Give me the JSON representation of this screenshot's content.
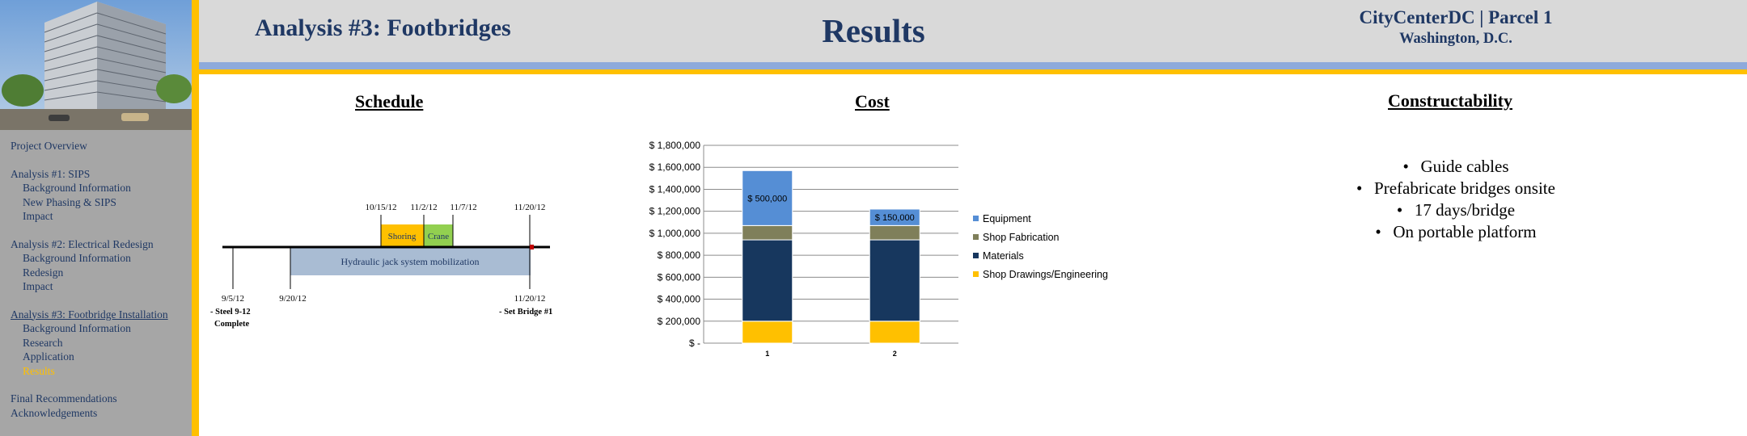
{
  "header": {
    "analysis_title": "Analysis #3: Footbridges",
    "page_title": "Results",
    "project_name": "CityCenterDC | Parcel 1",
    "location": "Washington, D.C."
  },
  "sidebar": {
    "nav": [
      {
        "label": "Project Overview",
        "level": 0
      },
      {
        "label": "Analysis #1: SIPS",
        "level": 0,
        "gap": true
      },
      {
        "label": "Background Information",
        "level": 1
      },
      {
        "label": "New Phasing & SIPS",
        "level": 1
      },
      {
        "label": "Impact",
        "level": 1
      },
      {
        "label": "Analysis #2: Electrical  Redesign",
        "level": 0,
        "gap": true
      },
      {
        "label": "Background Information",
        "level": 1
      },
      {
        "label": "Redesign",
        "level": 1
      },
      {
        "label": "Impact",
        "level": 1
      },
      {
        "label": "Analysis #3: Footbridge Installation",
        "level": 0,
        "gap": true,
        "underline": true
      },
      {
        "label": "Background Information",
        "level": 1
      },
      {
        "label": "Research",
        "level": 1
      },
      {
        "label": "Application",
        "level": 1
      },
      {
        "label": "Results",
        "level": 1,
        "active": true
      },
      {
        "label": "Final Recommendations",
        "level": 0,
        "gap": true
      },
      {
        "label": "Acknowledgements",
        "level": 0
      }
    ]
  },
  "schedule": {
    "title": "Schedule",
    "timeline": {
      "start_labels": [
        "9/5/12",
        "9/20/12"
      ],
      "end_label": "11/20/12",
      "top_dates": [
        "10/15/12",
        "11/2/12",
        "11/7/12",
        "11/20/12"
      ],
      "bars": {
        "hydraulic": "Hydraulic jack system mobilization",
        "shoring": "Shoring",
        "crane": "Crane"
      },
      "milestones": {
        "steel_line1": "- Steel 9-12",
        "steel_line2": "Complete",
        "bridge": "- Set Bridge #1"
      }
    }
  },
  "cost": {
    "title": "Cost"
  },
  "constructability": {
    "title": "Constructability",
    "bullets": [
      "Guide cables",
      "Prefabricate bridges onsite",
      "17 days/bridge",
      "On portable platform"
    ]
  },
  "colors": {
    "navy": "#1f3864",
    "gold": "#ffc000",
    "equipment": "#558ed5",
    "shop_fabrication": "#7f7f5a",
    "materials": "#17375e",
    "shop_drawings": "#ffc000",
    "hydraulic_bar": "#a9bcd3",
    "crane_bar": "#92d050"
  },
  "chart_data": {
    "type": "bar",
    "stacked": true,
    "categories": [
      "1",
      "2"
    ],
    "series": [
      {
        "name": "Shop Drawings/Engineering",
        "values": [
          200000,
          200000
        ],
        "color": "#ffc000"
      },
      {
        "name": "Materials",
        "values": [
          740000,
          740000
        ],
        "color": "#17375e"
      },
      {
        "name": "Shop Fabrication",
        "values": [
          130000,
          130000
        ],
        "color": "#7f7f5a"
      },
      {
        "name": "Equipment",
        "values": [
          500000,
          150000
        ],
        "color": "#558ed5"
      }
    ],
    "data_labels": [
      "$ 500,000",
      "$ 150,000"
    ],
    "ylim": [
      0,
      1800000
    ],
    "y_ticks": [
      0,
      200000,
      400000,
      600000,
      800000,
      1000000,
      1200000,
      1400000,
      1600000,
      1800000
    ],
    "y_tick_labels": [
      "$ -",
      "$ 200,000",
      "$ 400,000",
      "$ 600,000",
      "$ 800,000",
      "$ 1,000,000",
      "$ 1,200,000",
      "$ 1,400,000",
      "$ 1,600,000",
      "$ 1,800,000"
    ],
    "legend_order": [
      "Equipment",
      "Shop Fabrication",
      "Materials",
      "Shop Drawings/Engineering"
    ],
    "legend_position": "right",
    "grid": true
  }
}
